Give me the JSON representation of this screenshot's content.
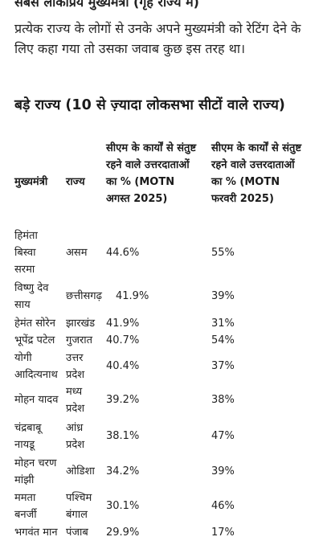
{
  "article": {
    "top_title": "सबसे लोकप्रिय मुख्यमंत्री (गृह राज्य में)",
    "intro": "प्रत्येक राज्य के लोगों से उनके अपने मुख्यमंत्री को रेटिंग देने के लिए कहा गया तो उसका जवाब कुछ इस तरह था।",
    "section_heading": "बड़े राज्य (10 से ज़्यादा लोकसभा सीटों वाले राज्य)"
  },
  "table": {
    "headers": {
      "cm": "मुख्यमंत्री",
      "state": "राज्य",
      "aug": "सीएम के कार्यों से संतुष्ट रहने वाले उत्तरदाताओं का % (MOTN अगस्त 2025)",
      "feb": "सीएम के कार्यों से संतुष्ट रहने वाले उत्तरदाताओं का % (MOTN फरवरी 2025)"
    },
    "rows": [
      {
        "cm": "हिमंता बिस्वा सरमा",
        "state": "असम",
        "aug": "44.6%",
        "feb": "55%"
      },
      {
        "cm": "विष्णु देव साय",
        "state": "छत्तीसगढ़",
        "aug": "41.9%",
        "feb": "39%"
      },
      {
        "cm": "हेमंत सोरेन",
        "state": "झारखंड",
        "aug": "41.9%",
        "feb": "31%"
      },
      {
        "cm": "भूपेंद्र पटेल",
        "state": "गुजरात",
        "aug": "40.7%",
        "feb": "54%"
      },
      {
        "cm": "योगी आदित्यनाथ",
        "state": "उत्तर प्रदेश",
        "aug": "40.4%",
        "feb": "37%"
      },
      {
        "cm": "मोहन यादव",
        "state": "मध्य प्रदेश",
        "aug": "39.2%",
        "feb": "38%"
      },
      {
        "cm": "चंद्रबाबू नायडू",
        "state": "आंध्र प्रदेश",
        "aug": "38.1%",
        "feb": "47%"
      },
      {
        "cm": "मोहन चरण मांझी",
        "state": "ओडिशा",
        "aug": "34.2%",
        "feb": "39%"
      },
      {
        "cm": "ममता बनर्जी",
        "state": "पश्चिम बंगाल",
        "aug": "30.1%",
        "feb": "46%"
      },
      {
        "cm": "भगवंत मान",
        "state": "पंजाब",
        "aug": "29.9%",
        "feb": "17%"
      }
    ]
  }
}
